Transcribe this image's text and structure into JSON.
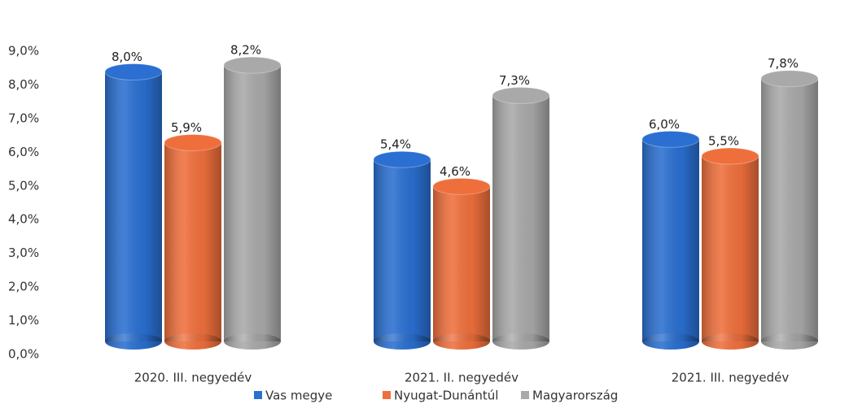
{
  "chart_data": {
    "type": "bar",
    "categories": [
      "2020. III. negyedév",
      "2021. II. negyedév",
      "2021. III. negyedév"
    ],
    "series": [
      {
        "name": "Vas megye",
        "color": "#2a6fd1",
        "values": [
          8.0,
          5.4,
          6.0
        ],
        "value_labels": [
          "8,0%",
          "5,4%",
          "6,0%"
        ]
      },
      {
        "name": "Nyugat-Dunántúl",
        "color": "#ef6f3c",
        "values": [
          5.9,
          4.6,
          5.5
        ],
        "value_labels": [
          "5,9%",
          "4,6%",
          "5,5%"
        ]
      },
      {
        "name": "Magyarország",
        "color": "#a9a9a9",
        "values": [
          8.2,
          7.3,
          7.8
        ],
        "value_labels": [
          "8,2%",
          "7,3%",
          "7,8%"
        ]
      }
    ],
    "ylim": [
      0,
      9
    ],
    "yticks": [
      {
        "value": 0,
        "label": "0,0%"
      },
      {
        "value": 1,
        "label": "1,0%"
      },
      {
        "value": 2,
        "label": "2,0%"
      },
      {
        "value": 3,
        "label": "3,0%"
      },
      {
        "value": 4,
        "label": "4,0%"
      },
      {
        "value": 5,
        "label": "5,0%"
      },
      {
        "value": 6,
        "label": "6,0%"
      },
      {
        "value": 7,
        "label": "7,0%"
      },
      {
        "value": 8,
        "label": "8,0%"
      },
      {
        "value": 9,
        "label": "9,0%"
      }
    ],
    "legend": "bottom"
  }
}
